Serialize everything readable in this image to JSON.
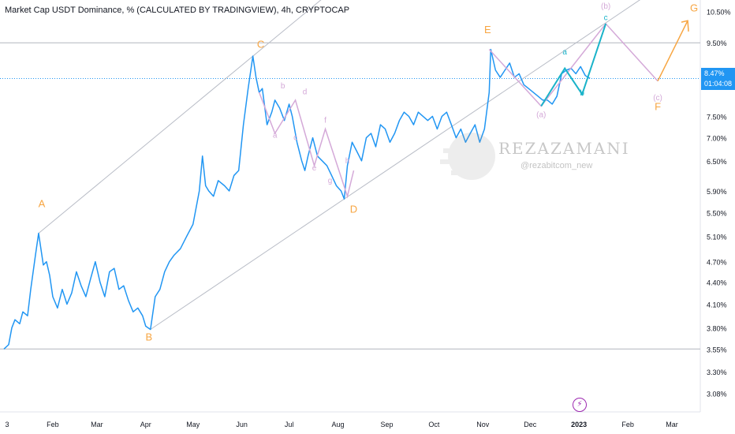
{
  "header": {
    "title": "Market Cap USDT Dominance, % (CALCULATED BY TRADINGVIEW), 4h, CRYPTOCAP"
  },
  "price_badge": {
    "value": "8.47%",
    "countdown": "01:04:08"
  },
  "watermark": {
    "name": "REZAZAMANI",
    "handle": "@rezabitcom_new"
  },
  "event_icon": {
    "glyph": "⚡",
    "name": "lightning-icon"
  },
  "colors": {
    "price": "#2196f3",
    "labels_orange": "#f7a541",
    "pink": "#d4a9d8",
    "teal": "#1ab3c9",
    "channel": "#b8bcc6",
    "event": "#9c27b0"
  },
  "chart_data": {
    "type": "line",
    "scale": "log",
    "ylim": [
      2.9,
      10.9
    ],
    "xlim": [
      0,
      442
    ],
    "y_ticks": [
      "10.50%",
      "9.50%",
      "8.47%",
      "7.50%",
      "7.00%",
      "6.50%",
      "5.90%",
      "5.50%",
      "5.10%",
      "4.70%",
      "4.40%",
      "4.10%",
      "3.80%",
      "3.55%",
      "3.30%",
      "3.08%"
    ],
    "y_tick_values": [
      10.5,
      9.5,
      8.47,
      7.5,
      7.0,
      6.5,
      5.9,
      5.5,
      5.1,
      4.7,
      4.4,
      4.1,
      3.8,
      3.55,
      3.3,
      3.08
    ],
    "x_ticks": [
      {
        "label": "3",
        "day": 2
      },
      {
        "label": "Feb",
        "day": 31
      },
      {
        "label": "Mar",
        "day": 59
      },
      {
        "label": "Apr",
        "day": 90
      },
      {
        "label": "May",
        "day": 120
      },
      {
        "label": "Jun",
        "day": 151
      },
      {
        "label": "Jul",
        "day": 181
      },
      {
        "label": "Aug",
        "day": 212
      },
      {
        "label": "Sep",
        "day": 243
      },
      {
        "label": "Oct",
        "day": 273
      },
      {
        "label": "Nov",
        "day": 304
      },
      {
        "label": "Dec",
        "day": 334
      },
      {
        "label": "2023",
        "day": 365
      },
      {
        "label": "Feb",
        "day": 396
      },
      {
        "label": "Mar",
        "day": 424
      }
    ],
    "series": [
      {
        "x": [
          0,
          3,
          5,
          7,
          10,
          12,
          15,
          17,
          20,
          22,
          25,
          27,
          29,
          31,
          34,
          37,
          40,
          43,
          46,
          49,
          52,
          55,
          58,
          61,
          64,
          67,
          70,
          73,
          76,
          79,
          82,
          85,
          88,
          90,
          93,
          96,
          99,
          102,
          105,
          108,
          112,
          116,
          120,
          124,
          126,
          128,
          130,
          133,
          136,
          140,
          143,
          146,
          149,
          152,
          155,
          158,
          160,
          162,
          164,
          167,
          170,
          172,
          175,
          178,
          181,
          183,
          186,
          189,
          191,
          193,
          196,
          199,
          202,
          205,
          208,
          211,
          214,
          216,
          218,
          221,
          224,
          227,
          230,
          233,
          236,
          239,
          242,
          245,
          248,
          251,
          254,
          257,
          260,
          263,
          266,
          269,
          272,
          275,
          278,
          281,
          284,
          287,
          290,
          293,
          296,
          299,
          302,
          305,
          308,
          309,
          312,
          315,
          318,
          321,
          324,
          327,
          330,
          333,
          336,
          339,
          342,
          345,
          348,
          351,
          354,
          357,
          360,
          363,
          366,
          369,
          372
        ],
        "y": [
          3.55,
          3.6,
          3.8,
          3.9,
          3.85,
          4.0,
          3.95,
          4.3,
          4.8,
          5.15,
          4.65,
          4.7,
          4.5,
          4.2,
          4.05,
          4.3,
          4.1,
          4.25,
          4.55,
          4.35,
          4.2,
          4.45,
          4.7,
          4.4,
          4.2,
          4.55,
          4.6,
          4.3,
          4.35,
          4.15,
          4.0,
          4.05,
          3.95,
          3.82,
          3.78,
          4.2,
          4.3,
          4.55,
          4.7,
          4.8,
          4.9,
          5.1,
          5.3,
          5.9,
          6.6,
          6.0,
          5.9,
          5.8,
          6.1,
          6.0,
          5.9,
          6.2,
          6.3,
          7.3,
          8.2,
          9.1,
          8.5,
          8.1,
          8.2,
          7.3,
          7.6,
          7.9,
          7.7,
          7.4,
          7.8,
          7.5,
          6.9,
          6.5,
          6.3,
          6.6,
          7.0,
          6.6,
          6.5,
          6.4,
          6.2,
          6.0,
          5.9,
          5.75,
          6.4,
          6.9,
          6.7,
          6.5,
          7.0,
          7.1,
          6.8,
          7.3,
          7.2,
          6.9,
          7.1,
          7.4,
          7.6,
          7.5,
          7.3,
          7.6,
          7.5,
          7.4,
          7.5,
          7.2,
          7.5,
          7.6,
          7.3,
          7.0,
          7.2,
          6.9,
          7.1,
          7.3,
          6.9,
          7.2,
          8.1,
          9.3,
          8.7,
          8.5,
          8.7,
          8.9,
          8.5,
          8.6,
          8.3,
          8.2,
          8.1,
          8.0,
          7.9,
          7.9,
          7.8,
          8.0,
          8.6,
          8.7,
          8.75,
          8.6,
          8.8,
          8.55,
          8.47
        ]
      }
    ],
    "annotations": [
      {
        "text": "A",
        "x": 24,
        "y": 5.6,
        "color": "orange"
      },
      {
        "text": "B",
        "x": 92,
        "y": 3.65,
        "color": "orange"
      },
      {
        "text": "C",
        "x": 163,
        "y": 9.35,
        "color": "orange"
      },
      {
        "text": "D",
        "x": 222,
        "y": 5.5,
        "color": "orange"
      },
      {
        "text": "E",
        "x": 307,
        "y": 9.8,
        "color": "orange"
      },
      {
        "text": "F",
        "x": 415,
        "y": 7.65,
        "color": "orange"
      },
      {
        "text": "G",
        "x": 438,
        "y": 10.5,
        "color": "orange"
      },
      {
        "text": "a",
        "x": 172,
        "y": 7.0,
        "color": "pink"
      },
      {
        "text": "b",
        "x": 177,
        "y": 8.2,
        "color": "pink"
      },
      {
        "text": "c",
        "x": 185,
        "y": 6.95,
        "color": "pink"
      },
      {
        "text": "d",
        "x": 191,
        "y": 8.05,
        "color": "pink"
      },
      {
        "text": "e",
        "x": 197,
        "y": 6.3,
        "color": "pink"
      },
      {
        "text": "f",
        "x": 204,
        "y": 7.35,
        "color": "pink"
      },
      {
        "text": "g",
        "x": 207,
        "y": 6.05,
        "color": "pink"
      },
      {
        "text": "h",
        "x": 218,
        "y": 6.45,
        "color": "pink"
      },
      {
        "text": "(a)",
        "x": 341,
        "y": 7.48,
        "color": "pink"
      },
      {
        "text": "(b)",
        "x": 382,
        "y": 10.6,
        "color": "pink"
      },
      {
        "text": "(c)",
        "x": 415,
        "y": 7.9,
        "color": "pink"
      },
      {
        "text": "a",
        "x": 356,
        "y": 9.15,
        "color": "teal"
      },
      {
        "text": "b",
        "x": 367,
        "y": 8.02,
        "color": "teal"
      },
      {
        "text": "c",
        "x": 382,
        "y": 10.22,
        "color": "teal"
      }
    ]
  }
}
